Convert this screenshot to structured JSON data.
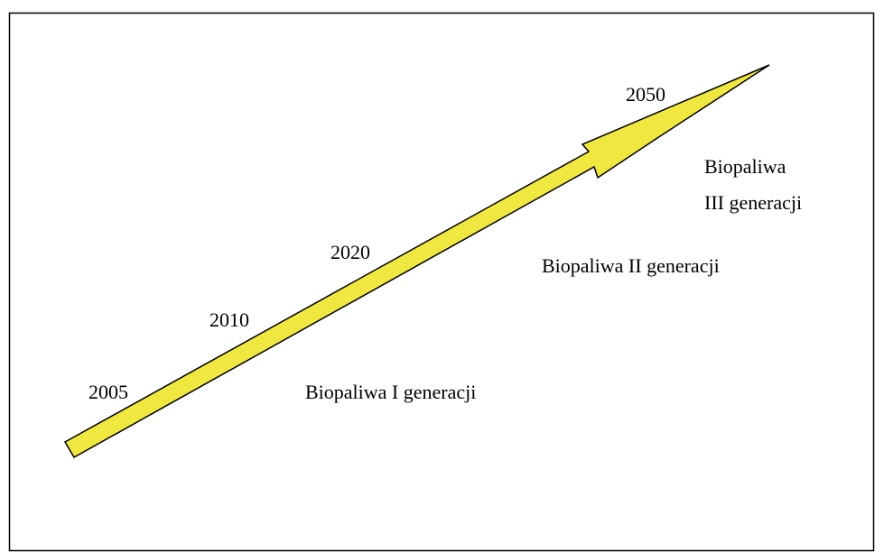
{
  "years": [
    "2005",
    "2010",
    "2020",
    "2050"
  ],
  "generations": [
    {
      "lines": [
        "Biopaliwa I generacji"
      ]
    },
    {
      "lines": [
        "Biopaliwa II generacji"
      ]
    },
    {
      "lines": [
        "Biopaliwa",
        "III generacji"
      ]
    }
  ]
}
